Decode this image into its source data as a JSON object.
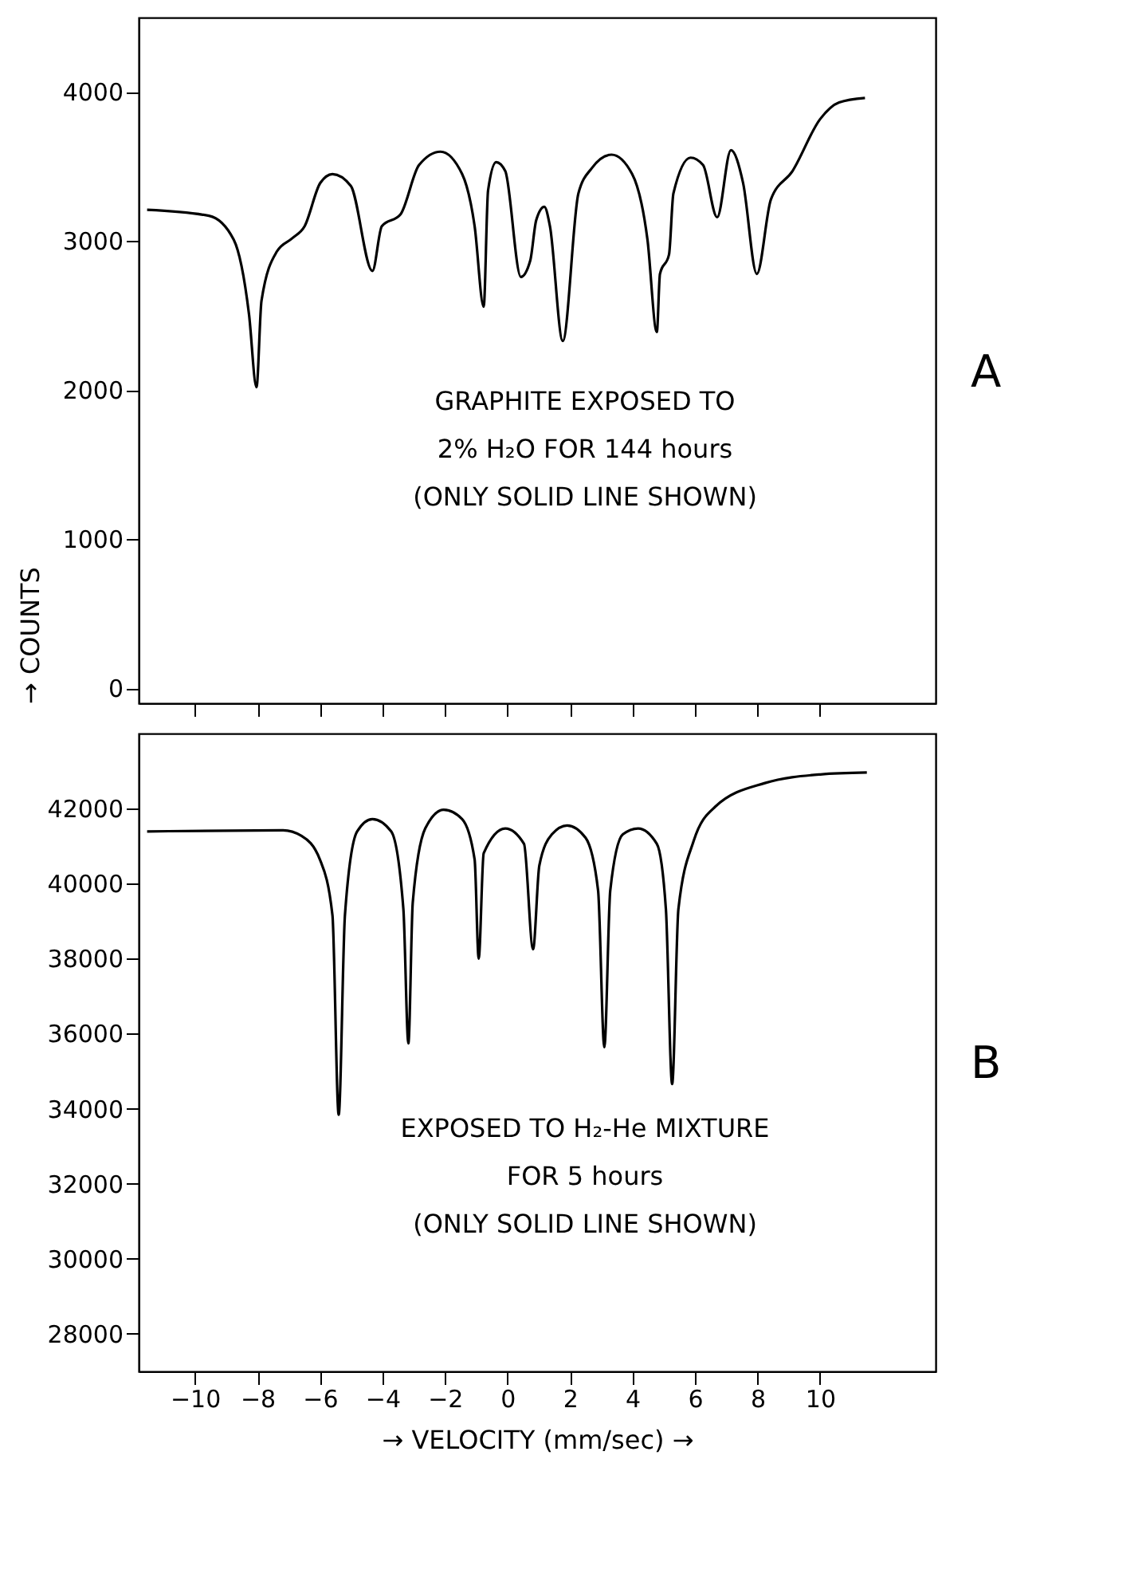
{
  "chart_data": [
    {
      "type": "line",
      "color": "#000000",
      "ylabel": "→ COUNTS",
      "xlim": [
        -11.8,
        13.7
      ],
      "xticks": [
        -10,
        -8,
        -6,
        -4,
        -2,
        0,
        2,
        4,
        6,
        8,
        10
      ],
      "ylim": [
        -100,
        4500
      ],
      "yticks": [
        0,
        1000,
        2000,
        3000,
        4000
      ],
      "tick_labels": "y",
      "grid": false,
      "x": [
        -11.53,
        -9.55,
        -8.76,
        -8.27,
        -8.03,
        -7.87,
        -7.38,
        -6.88,
        -6.49,
        -5.99,
        -5.6,
        -5.01,
        -4.32,
        -4.02,
        -3.42,
        -2.83,
        -2.14,
        -1.45,
        -1.05,
        -0.76,
        -0.62,
        -0.36,
        -0.07,
        0.43,
        0.73,
        0.92,
        1.18,
        1.36,
        1.77,
        2.27,
        2.7,
        3.33,
        3.99,
        4.48,
        4.78,
        4.88,
        5.17,
        5.31,
        5.86,
        6.26,
        6.71,
        7.15,
        7.54,
        7.98,
        8.43,
        9.12,
        10.01,
        10.61,
        11.44
      ],
      "values": [
        3210,
        3170,
        3010,
        2510,
        2020,
        2600,
        2930,
        3020,
        3100,
        3390,
        3450,
        3370,
        2800,
        3100,
        3180,
        3510,
        3600,
        3450,
        3100,
        2560,
        3340,
        3530,
        3470,
        2760,
        2870,
        3140,
        3230,
        3100,
        2330,
        3320,
        3490,
        3580,
        3450,
        3010,
        2390,
        2780,
        2910,
        3320,
        3560,
        3510,
        3160,
        3610,
        3390,
        2780,
        3280,
        3470,
        3820,
        3930,
        3960
      ],
      "annotations": [
        "GRAPHITE EXPOSED TO",
        "2% H₂O FOR 144 hours",
        "(ONLY SOLID LINE SHOWN)",
        "A"
      ]
    },
    {
      "type": "line",
      "color": "#000000",
      "xlabel": "→ VELOCITY (mm/sec) →",
      "xlim": [
        -11.8,
        13.7
      ],
      "xticks": [
        -10,
        -8,
        -6,
        -4,
        -2,
        0,
        2,
        4,
        6,
        8,
        10
      ],
      "ylim": [
        27000,
        44000
      ],
      "yticks": [
        28000,
        30000,
        32000,
        34000,
        36000,
        38000,
        40000,
        42000
      ],
      "grid": false,
      "x": [
        -11.53,
        -7.18,
        -6.59,
        -6.0,
        -5.6,
        -5.4,
        -5.2,
        -4.81,
        -4.32,
        -3.72,
        -3.33,
        -3.17,
        -3.03,
        -2.63,
        -2.04,
        -1.45,
        -1.05,
        -0.92,
        -0.76,
        -0.07,
        0.53,
        0.82,
        1.02,
        1.42,
        1.91,
        2.5,
        2.9,
        3.1,
        3.29,
        3.69,
        4.18,
        4.78,
        5.07,
        5.27,
        5.47,
        5.96,
        6.65,
        8.24,
        10.01,
        11.5
      ],
      "values": [
        41390,
        41420,
        41270,
        40640,
        39160,
        33840,
        39160,
        41390,
        41720,
        41390,
        39320,
        35740,
        39490,
        41470,
        41970,
        41720,
        40640,
        38000,
        40810,
        41470,
        41060,
        38250,
        40480,
        41310,
        41550,
        41220,
        39820,
        35640,
        39820,
        41310,
        41470,
        41060,
        39320,
        34660,
        39320,
        41140,
        42050,
        42680,
        42910,
        42960
      ],
      "annotations": [
        "EXPOSED TO H₂-He MIXTURE",
        "FOR 5 hours",
        "(ONLY SOLID LINE SHOWN)",
        "B"
      ]
    }
  ]
}
